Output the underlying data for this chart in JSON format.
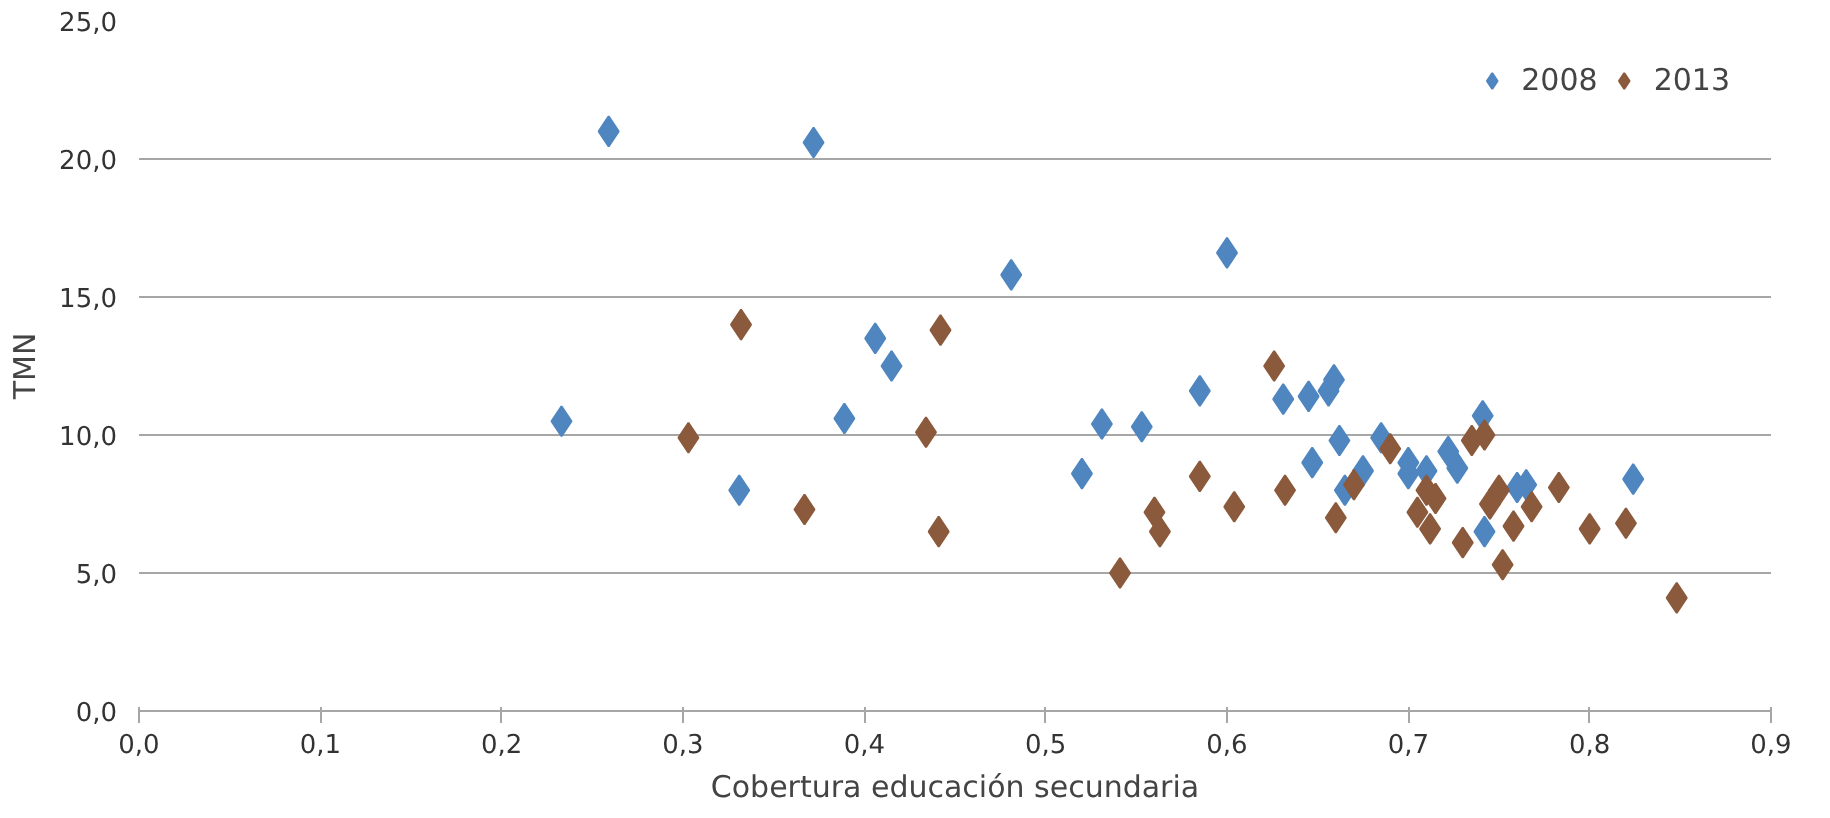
{
  "chart_data": {
    "type": "scatter",
    "xlabel": "Cobertura educación secundaria",
    "ylabel": "TMN",
    "xlim": [
      0,
      0.9
    ],
    "ylim": [
      0,
      25
    ],
    "xticks": [
      {
        "value": 0,
        "label": "0,0"
      },
      {
        "value": 0.1,
        "label": "0,1"
      },
      {
        "value": 0.2,
        "label": "0,2"
      },
      {
        "value": 0.3,
        "label": "0,3"
      },
      {
        "value": 0.4,
        "label": "0,4"
      },
      {
        "value": 0.5,
        "label": "0,5"
      },
      {
        "value": 0.6,
        "label": "0,6"
      },
      {
        "value": 0.7,
        "label": "0,7"
      },
      {
        "value": 0.8,
        "label": "0,8"
      },
      {
        "value": 0.9,
        "label": "0,9"
      }
    ],
    "yticks": [
      {
        "value": 0,
        "label": "0,0"
      },
      {
        "value": 5,
        "label": "5,0"
      },
      {
        "value": 10,
        "label": "10,0"
      },
      {
        "value": 15,
        "label": "15,0"
      },
      {
        "value": 20,
        "label": "20,0"
      },
      {
        "value": 25,
        "label": "25,0"
      }
    ],
    "grid": "y",
    "legend": "top right",
    "marker": "diamond",
    "series": [
      {
        "name": "2008",
        "color": "#4f86c0",
        "x": [
          0.233,
          0.259,
          0.331,
          0.372,
          0.389,
          0.406,
          0.415,
          0.481,
          0.52,
          0.531,
          0.553,
          0.558,
          0.585,
          0.6,
          0.631,
          0.645,
          0.647,
          0.656,
          0.659,
          0.662,
          0.665,
          0.675,
          0.685,
          0.7,
          0.71,
          0.722,
          0.727,
          0.741,
          0.742,
          0.76,
          0.765,
          0.824,
          0.7
        ],
        "values": [
          10.5,
          21.0,
          8.0,
          20.6,
          10.6,
          13.5,
          12.5,
          15.8,
          8.6,
          10.4,
          10.3,
          null,
          11.6,
          16.6,
          11.3,
          11.4,
          9.0,
          11.6,
          12.0,
          9.8,
          8.0,
          8.7,
          9.9,
          8.6,
          8.7,
          9.4,
          8.8,
          10.7,
          6.5,
          8.1,
          8.2,
          8.4,
          9.0
        ]
      },
      {
        "name": "2013",
        "color": "#8b5a3c",
        "x": [
          0.303,
          0.332,
          0.367,
          0.434,
          0.442,
          0.441,
          0.541,
          0.56,
          0.563,
          0.585,
          0.604,
          0.626,
          0.632,
          0.66,
          0.67,
          0.69,
          0.705,
          0.71,
          0.712,
          0.715,
          0.73,
          0.735,
          0.742,
          0.75,
          0.752,
          0.758,
          0.768,
          0.783,
          0.8,
          0.82,
          0.848,
          0.745
        ],
        "values": [
          9.9,
          14.0,
          7.3,
          10.1,
          13.8,
          6.5,
          5.0,
          7.2,
          6.5,
          8.5,
          7.4,
          12.5,
          8.0,
          7.0,
          8.2,
          9.5,
          7.2,
          8.0,
          6.6,
          7.7,
          6.1,
          9.8,
          10.0,
          8.0,
          5.3,
          6.7,
          7.4,
          8.1,
          6.6,
          6.8,
          4.1,
          7.5
        ]
      }
    ]
  }
}
